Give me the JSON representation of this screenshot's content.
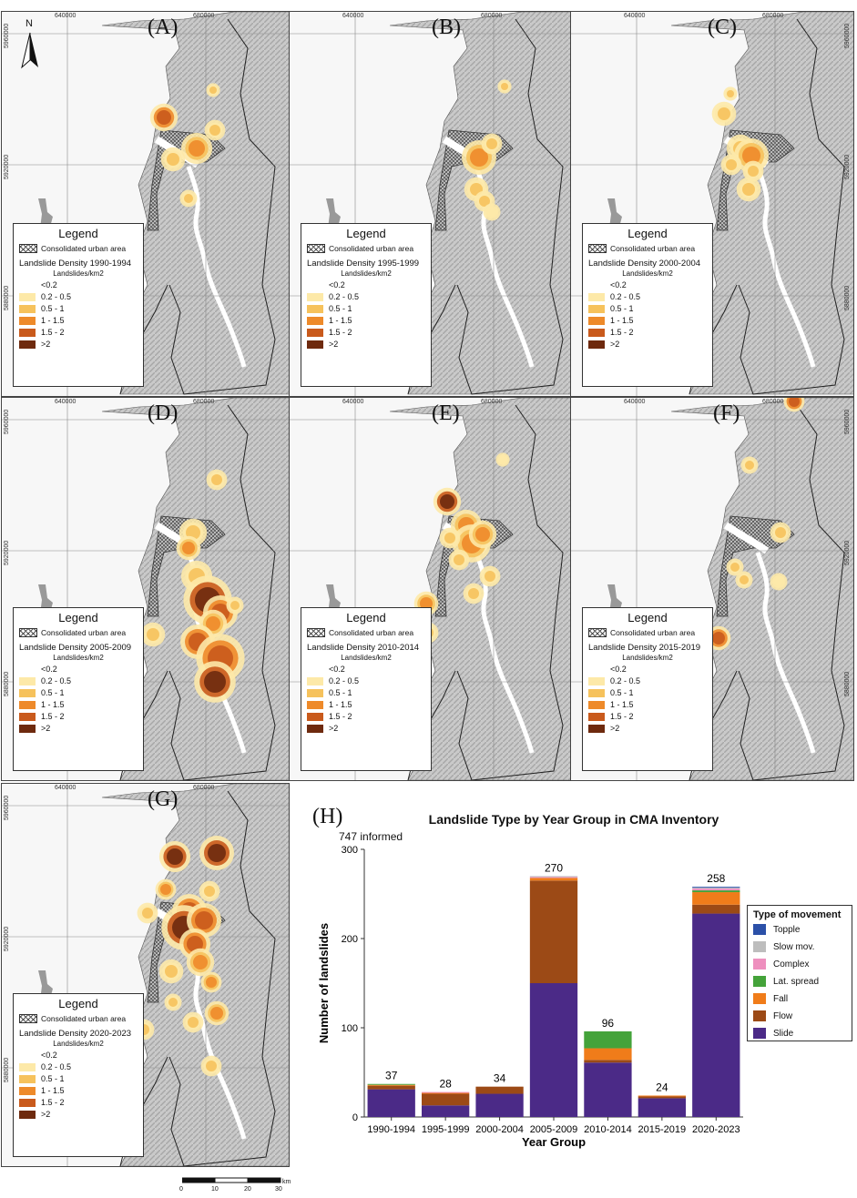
{
  "panels": [
    {
      "label": "(A)",
      "legend_title": "Legend",
      "urban_label": "Consolidated urban area",
      "density_title": "Landslide Density 1990-1994",
      "unit": "Landslides/km2"
    },
    {
      "label": "(B)",
      "legend_title": "Legend",
      "urban_label": "Consolidated urban area",
      "density_title": "Landslide Density 1995-1999",
      "unit": "Landslides/km2"
    },
    {
      "label": "(C)",
      "legend_title": "Legend",
      "urban_label": "Consolidated urban area",
      "density_title": "Landslide Density 2000-2004",
      "unit": "Landslides/km2"
    },
    {
      "label": "(D)",
      "legend_title": "Legend",
      "urban_label": "Consolidated urban area",
      "density_title": "Landslide Density 2005-2009",
      "unit": "Landslides/km2"
    },
    {
      "label": "(E)",
      "legend_title": "Legend",
      "urban_label": "Consolidated urban area",
      "density_title": "Landslide Density 2010-2014",
      "unit": "Landslides/km2"
    },
    {
      "label": "(F)",
      "legend_title": "Legend",
      "urban_label": "Consolidated urban area",
      "density_title": "Landslide Density 2015-2019",
      "unit": "Landslides/km2"
    },
    {
      "label": "(G)",
      "legend_title": "Legend",
      "urban_label": "Consolidated urban area",
      "density_title": "Landslide Density 2020-2023",
      "unit": "Landslides/km2"
    }
  ],
  "density_classes": [
    {
      "label": "<0.2",
      "color": "#ffffff"
    },
    {
      "label": "0.2 - 0.5",
      "color": "#fde9a8"
    },
    {
      "label": "0.5 - 1",
      "color": "#f6c25c"
    },
    {
      "label": "1 - 1.5",
      "color": "#ee8a2a"
    },
    {
      "label": "1.5 - 2",
      "color": "#c95a1c"
    },
    {
      "label": ">2",
      "color": "#6e2a0e"
    }
  ],
  "coords": {
    "e1": "640000",
    "e2": "680000",
    "n1": "5960000",
    "n2": "5920000",
    "n3": "5880000"
  },
  "north_label": "N",
  "scale": {
    "ticks": [
      "0",
      "10",
      "20",
      "30"
    ],
    "unit": "km"
  },
  "chart_label": "(H)",
  "informed": "747 informed",
  "chart_data": {
    "type": "bar",
    "stacked": true,
    "title": "Landslide Type by Year Group in CMA Inventory",
    "xlabel": "Year Group",
    "ylabel": "Number of landslides",
    "ylim": [
      0,
      300
    ],
    "yticks": [
      "0",
      "100",
      "200",
      "300"
    ],
    "categories": [
      "1990-1994",
      "1995-1999",
      "2000-2004",
      "2005-2009",
      "2010-2014",
      "2015-2019",
      "2020-2023"
    ],
    "totals": [
      37,
      28,
      34,
      270,
      96,
      24,
      258
    ],
    "legend_title": "Type of movement",
    "legend_order": [
      "Topple",
      "Slow mov.",
      "Complex",
      "Lat. spread",
      "Fall",
      "Flow",
      "Slide"
    ],
    "series": [
      {
        "name": "Slide",
        "color": "#4b2a87",
        "values": [
          31,
          13,
          26,
          150,
          61,
          21,
          228
        ]
      },
      {
        "name": "Flow",
        "color": "#9c4a16",
        "values": [
          4,
          13,
          8,
          115,
          3,
          2,
          10
        ]
      },
      {
        "name": "Fall",
        "color": "#f07c1a",
        "values": [
          1,
          1,
          0,
          3,
          13,
          1,
          14
        ]
      },
      {
        "name": "Lat. spread",
        "color": "#44a33a",
        "values": [
          1,
          0,
          0,
          0,
          19,
          0,
          2
        ]
      },
      {
        "name": "Complex",
        "color": "#ee8fbe",
        "values": [
          0,
          1,
          0,
          1,
          0,
          0,
          2
        ]
      },
      {
        "name": "Slow mov.",
        "color": "#bdbdbd",
        "values": [
          0,
          0,
          0,
          1,
          0,
          0,
          1
        ]
      },
      {
        "name": "Topple",
        "color": "#2b50a8",
        "values": [
          0,
          0,
          0,
          0,
          0,
          0,
          1
        ]
      }
    ],
    "grid": false,
    "legend_placement": "right"
  }
}
